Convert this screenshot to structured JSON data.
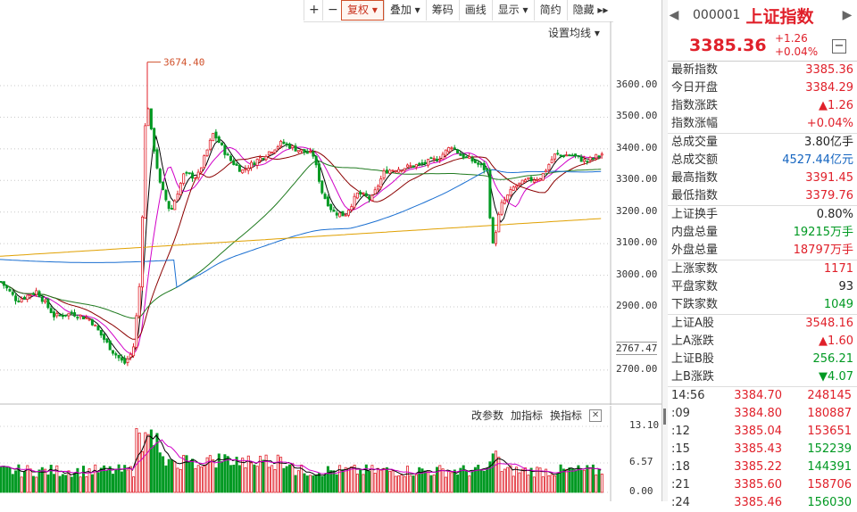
{
  "toolbar": {
    "items": [
      {
        "label": "+",
        "name": "zoom-in-button",
        "square": true
      },
      {
        "label": "−",
        "name": "zoom-out-button",
        "square": true
      },
      {
        "label": "复权 ▾",
        "name": "fuquan-button",
        "active": true
      },
      {
        "label": "叠加 ▾",
        "name": "overlay-button"
      },
      {
        "label": "筹码",
        "name": "chips-button",
        "dot": true
      },
      {
        "label": "画线",
        "name": "draw-line-button"
      },
      {
        "label": "显示 ▾",
        "name": "display-button"
      },
      {
        "label": "简约",
        "name": "simple-button"
      },
      {
        "label": "隐藏 ▸▸",
        "name": "hide-button"
      }
    ]
  },
  "chart": {
    "settings_label": "设置均线 ▾",
    "peak_label": "3674.40",
    "price_ticks": [
      "3600.00",
      "3500.00",
      "3400.00",
      "3300.00",
      "3200.00",
      "3100.00",
      "3000.00",
      "2900.00",
      "2700.00"
    ],
    "current_marker": "2767.47",
    "vol_ticks": [
      "13.10",
      "6.57",
      "0.00"
    ],
    "vol_controls": [
      "改参数",
      "加指标",
      "换指标"
    ]
  },
  "panel": {
    "code": "000001",
    "name": "上证指数",
    "price": "3385.36",
    "change": "+1.26",
    "change_pct": "+0.04%",
    "stats": [
      {
        "k": "最新指数",
        "v": "3385.36",
        "c": "red"
      },
      {
        "k": "今日开盘",
        "v": "3384.29",
        "c": "red"
      },
      {
        "k": "指数涨跌",
        "v": "▲1.26",
        "c": "red"
      },
      {
        "k": "指数涨幅",
        "v": "+0.04%",
        "c": "red",
        "sep": true
      },
      {
        "k": "总成交量",
        "v": "3.80亿手",
        "c": "black"
      },
      {
        "k": "总成交额",
        "v": "4527.44亿元",
        "c": "blue"
      },
      {
        "k": "最高指数",
        "v": "3391.45",
        "c": "red"
      },
      {
        "k": "最低指数",
        "v": "3379.76",
        "c": "red",
        "sep": true
      },
      {
        "k": "上证换手",
        "v": "0.80%",
        "c": "black"
      },
      {
        "k": "内盘总量",
        "v": "19215万手",
        "c": "green"
      },
      {
        "k": "外盘总量",
        "v": "18797万手",
        "c": "red",
        "sep": true
      },
      {
        "k": "上涨家数",
        "v": "1171",
        "c": "red"
      },
      {
        "k": "平盘家数",
        "v": "93",
        "c": "black"
      },
      {
        "k": "下跌家数",
        "v": "1049",
        "c": "green",
        "sep": true
      },
      {
        "k": "上证A股",
        "v": "3548.16",
        "c": "red"
      },
      {
        "k": "上A涨跌",
        "v": "▲1.60",
        "c": "red"
      },
      {
        "k": "上证B股",
        "v": "256.21",
        "c": "green"
      },
      {
        "k": "上B涨跌",
        "v": "▼4.07",
        "c": "green",
        "sep": true
      }
    ],
    "trades": [
      {
        "t": "14:56",
        "p": "3384.70",
        "v": "248145",
        "pc": "red",
        "vc": "red"
      },
      {
        "t": ":09",
        "p": "3384.80",
        "v": "180887",
        "pc": "red",
        "vc": "red"
      },
      {
        "t": ":12",
        "p": "3385.04",
        "v": "153651",
        "pc": "red",
        "vc": "red"
      },
      {
        "t": ":15",
        "p": "3385.43",
        "v": "152239",
        "pc": "red",
        "vc": "green"
      },
      {
        "t": ":18",
        "p": "3385.22",
        "v": "144391",
        "pc": "red",
        "vc": "green"
      },
      {
        "t": ":21",
        "p": "3385.60",
        "v": "158706",
        "pc": "red",
        "vc": "red"
      },
      {
        "t": ":24",
        "p": "3385.46",
        "v": "156030",
        "pc": "red",
        "vc": "green"
      }
    ]
  },
  "colors": {
    "up": "#e0202a",
    "down": "#009922",
    "ma5": "#000000",
    "ma10": "#d100c8",
    "ma20": "#8b0000",
    "ma60": "#1f7a1f",
    "ma120": "#1a6fd1",
    "ma250": "#e0a000"
  }
}
